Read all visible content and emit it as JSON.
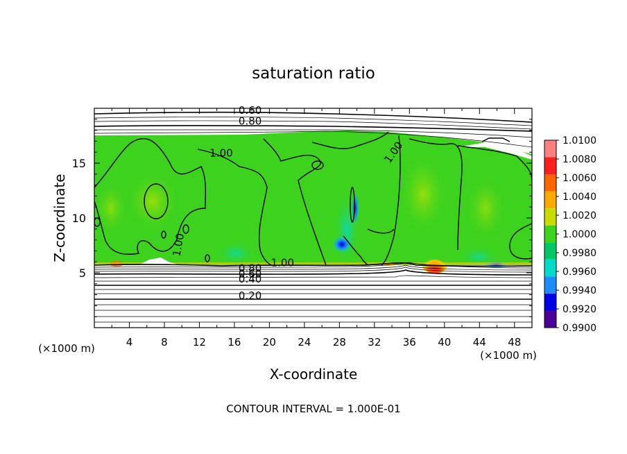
{
  "chart_data": {
    "type": "heatmap",
    "title": "saturation ratio",
    "xlabel": "X-coordinate",
    "ylabel": "Z-coordinate",
    "x_unit": "(×1000 m)",
    "z_unit": "(×1000 m)",
    "xlim": [
      0,
      50
    ],
    "ylim": [
      0,
      20
    ],
    "x_ticks": [
      4,
      8,
      12,
      16,
      20,
      24,
      28,
      32,
      36,
      40,
      44,
      48
    ],
    "y_ticks": [
      5,
      10,
      15
    ],
    "footer": "CONTOUR INTERVAL = 1.000E-01",
    "contour_labels": [
      {
        "text": "0.60",
        "x": 17.8,
        "z": 19.5
      },
      {
        "text": "0.80",
        "x": 17.8,
        "z": 18.5
      },
      {
        "text": "1.00",
        "x": 14.5,
        "z": 15.6
      },
      {
        "text": "1.00",
        "x": 10.0,
        "z": 7.5
      },
      {
        "text": "1.00",
        "x": 34.5,
        "z": 15.8
      },
      {
        "text": "1.00",
        "x": 21.5,
        "z": 5.6
      },
      {
        "text": "0.80",
        "x": 17.8,
        "z": 5.1
      },
      {
        "text": "0.60",
        "x": 17.8,
        "z": 4.6
      },
      {
        "text": "0.40",
        "x": 17.8,
        "z": 4.1
      },
      {
        "text": "0.20",
        "x": 17.8,
        "z": 2.6
      }
    ],
    "colorbar": {
      "labels": [
        "1.0100",
        "1.0080",
        "1.0060",
        "1.0040",
        "1.0020",
        "1.0000",
        "0.9980",
        "0.9960",
        "0.9940",
        "0.9920",
        "0.9900"
      ],
      "colors": [
        "#ff8080",
        "#ff1e1e",
        "#ff6600",
        "#ffaa00",
        "#c8dc00",
        "#3cd21e",
        "#00c864",
        "#00dcc8",
        "#1e8cff",
        "#0000e6",
        "#4b0096"
      ]
    },
    "grid": false
  }
}
